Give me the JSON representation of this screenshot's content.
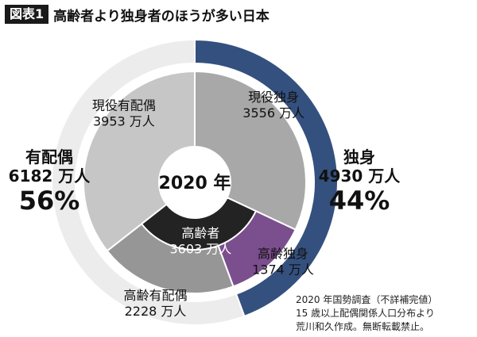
{
  "header": {
    "badge": "図表1",
    "title": "高齢者より独身者のほうが多い日本"
  },
  "labels": {
    "married_side": {
      "name": "有配偶",
      "value": "6182 万人",
      "pct": "56%"
    },
    "single_side": {
      "name": "独身",
      "value": "4930 万人",
      "pct": "44%"
    }
  },
  "source": {
    "line1": "2020 年国勢調査（不詳補完値）",
    "line2": "15 歳以上配偶関係人口分布より",
    "line3": "荒川和久作成。無断転載禁止。"
  },
  "colors": {
    "outer_married": "#ececec",
    "outer_single": "#34507e",
    "inner_working_married": "#c6c6c6",
    "inner_working_single": "#a8a8a8",
    "inner_elderly_single": "#7b4e8e",
    "inner_elderly_married": "#969696",
    "elderly_band": "#232323"
  },
  "chart_data": {
    "type": "pie",
    "center_label": "2020 年",
    "rings": [
      {
        "name": "outer",
        "slices": [
          {
            "label": "独身",
            "value": 4930,
            "percent": 44,
            "color": "#34507e"
          },
          {
            "label": "有配偶",
            "value": 6182,
            "percent": 56,
            "color": "#ececec"
          }
        ]
      },
      {
        "name": "inner",
        "slices": [
          {
            "label": "現役独身",
            "value": 3556,
            "display": "3556 万人",
            "color": "#a8a8a8"
          },
          {
            "label": "高齢独身",
            "value": 1374,
            "display": "1374 万人",
            "color": "#7b4e8e"
          },
          {
            "label": "高齢有配偶",
            "value": 2228,
            "display": "2228 万人",
            "color": "#969696"
          },
          {
            "label": "現役有配偶",
            "value": 3953,
            "display": "3953 万人",
            "color": "#c6c6c6"
          }
        ]
      }
    ],
    "elderly_total": {
      "label": "高齢者",
      "value": 3603,
      "display": "3603 万人",
      "color": "#232323"
    }
  }
}
